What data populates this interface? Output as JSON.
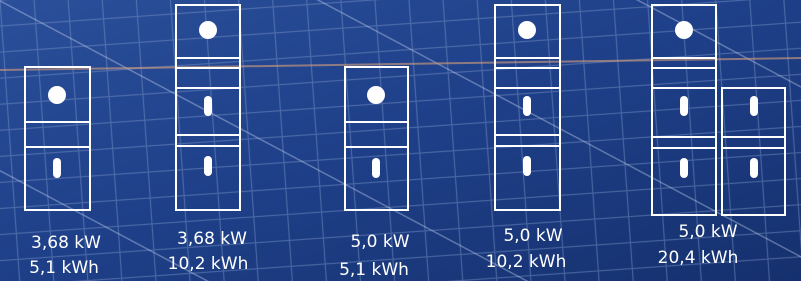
{
  "configurations": [
    {
      "power": "3,68 kW",
      "capacity": "5,1 kWh"
    },
    {
      "power": "3,68 kW",
      "capacity": "10,2 kWh"
    },
    {
      "power": "5,0 kW",
      "capacity": "5,1 kWh"
    },
    {
      "power": "5,0 kW",
      "capacity": "10,2 kWh"
    },
    {
      "power": "5,0 kW",
      "capacity": "20,4 kWh"
    }
  ]
}
